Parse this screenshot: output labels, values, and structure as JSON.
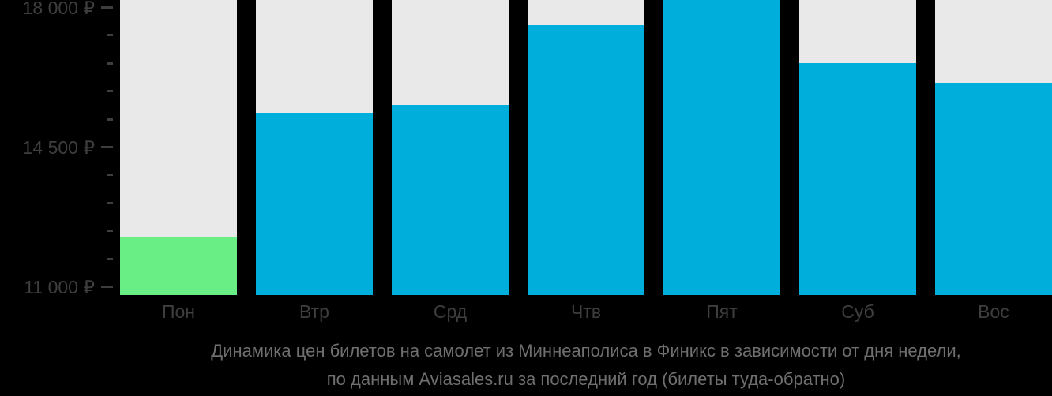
{
  "chart_data": {
    "type": "bar",
    "title": "Динамика цен билетов на самолет из Миннеаполиса в Финикс в зависимости от дня недели, по данным Aviasales.ru за последний год (билеты туда-обратно)",
    "title_line1": "Динамика цен билетов на самолет из Миннеаполиса в Финикс в зависимости от дня недели,",
    "title_line2": "по данным Aviasales.ru за последний год (билеты туда-обратно)",
    "categories": [
      "Пон",
      "Втр",
      "Срд",
      "Чтв",
      "Пят",
      "Суб",
      "Вос"
    ],
    "values": [
      12250,
      15350,
      15550,
      17550,
      18200,
      16600,
      16100
    ],
    "series_note": "Friday bar is clipped at the top edge of the plot",
    "highlight_index": 0,
    "xlabel": "",
    "ylabel": "",
    "currency": "₽",
    "ylim": [
      10783,
      18178
    ],
    "grid": false,
    "legend": false,
    "y_ticks_major": [
      {
        "value": 18000,
        "label": "18 000 ₽"
      },
      {
        "value": 14500,
        "label": "14 500 ₽"
      },
      {
        "value": 11000,
        "label": "11 000 ₽"
      }
    ],
    "y_ticks_minor": [
      17300,
      16600,
      15900,
      15200,
      13800,
      13100,
      12400,
      11700
    ]
  },
  "colors": {
    "background": "#000000",
    "column_background": "#e9e9e9",
    "bar_default": "#00aedc",
    "bar_highlight": "#69ee85",
    "axis_text": "#3e3e3e",
    "tick": "#3e3e3e",
    "caption_text": "#6f6f6f"
  }
}
